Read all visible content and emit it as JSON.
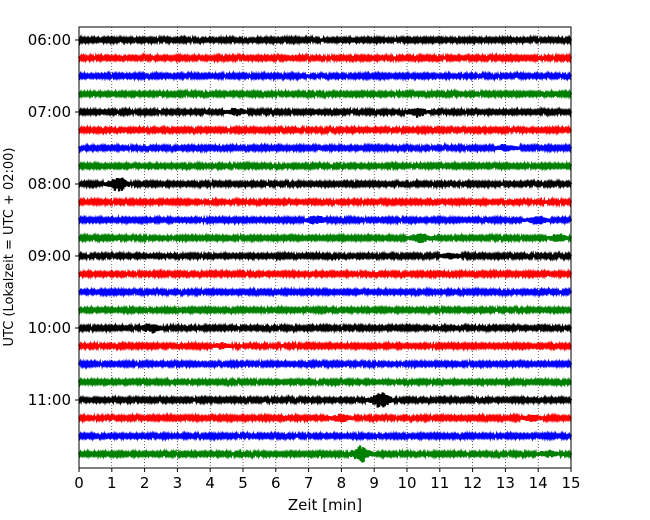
{
  "chart_data": {
    "type": "line",
    "title": "",
    "xlabel": "Zeit  [min]",
    "ylabel": "UTC (Lokalzeit = UTC + 02:00)",
    "xlim": [
      0,
      15
    ],
    "x_ticks": [
      "0",
      "1",
      "2",
      "3",
      "4",
      "5",
      "6",
      "7",
      "8",
      "9",
      "10",
      "11",
      "12",
      "13",
      "14",
      "15"
    ],
    "y_tick_labels": [
      "06:00",
      "07:00",
      "08:00",
      "09:00",
      "10:00",
      "11:00"
    ],
    "grid": "vertical-dotted",
    "trace_colors": [
      "#000000",
      "#ff0000",
      "#0000ff",
      "#008000"
    ],
    "traces": [
      {
        "row": 0,
        "start": "06:00",
        "color": "#000000",
        "events": []
      },
      {
        "row": 1,
        "start": "06:15",
        "color": "#ff0000",
        "events": []
      },
      {
        "row": 2,
        "start": "06:30",
        "color": "#0000ff",
        "events": []
      },
      {
        "row": 3,
        "start": "06:45",
        "color": "#008000",
        "events": []
      },
      {
        "row": 4,
        "start": "07:00",
        "color": "#000000",
        "events": [
          {
            "t": 4.8,
            "amp": 0.35
          },
          {
            "t": 10.3,
            "amp": 0.5
          }
        ]
      },
      {
        "row": 5,
        "start": "07:15",
        "color": "#ff0000",
        "events": []
      },
      {
        "row": 6,
        "start": "07:30",
        "color": "#0000ff",
        "events": [
          {
            "t": 13.0,
            "amp": 0.3
          }
        ]
      },
      {
        "row": 7,
        "start": "07:45",
        "color": "#008000",
        "events": []
      },
      {
        "row": 8,
        "start": "08:00",
        "color": "#000000",
        "events": [
          {
            "t": 1.2,
            "amp": 0.75
          }
        ]
      },
      {
        "row": 9,
        "start": "08:15",
        "color": "#ff0000",
        "events": []
      },
      {
        "row": 10,
        "start": "08:30",
        "color": "#0000ff",
        "events": [
          {
            "t": 7.2,
            "amp": 0.45
          },
          {
            "t": 14.0,
            "amp": 0.4
          }
        ]
      },
      {
        "row": 11,
        "start": "08:45",
        "color": "#008000",
        "events": [
          {
            "t": 10.4,
            "amp": 0.45
          },
          {
            "t": 14.6,
            "amp": 0.35
          }
        ]
      },
      {
        "row": 12,
        "start": "09:00",
        "color": "#000000",
        "events": [
          {
            "t": 11.3,
            "amp": 0.25
          }
        ]
      },
      {
        "row": 13,
        "start": "09:15",
        "color": "#ff0000",
        "events": []
      },
      {
        "row": 14,
        "start": "09:30",
        "color": "#0000ff",
        "events": []
      },
      {
        "row": 15,
        "start": "09:45",
        "color": "#008000",
        "events": []
      },
      {
        "row": 16,
        "start": "10:00",
        "color": "#000000",
        "events": [
          {
            "t": 2.2,
            "amp": 0.45
          }
        ]
      },
      {
        "row": 17,
        "start": "10:15",
        "color": "#ff0000",
        "events": [
          {
            "t": 4.4,
            "amp": 0.25
          }
        ]
      },
      {
        "row": 18,
        "start": "10:30",
        "color": "#0000ff",
        "events": []
      },
      {
        "row": 19,
        "start": "10:45",
        "color": "#008000",
        "events": []
      },
      {
        "row": 20,
        "start": "11:00",
        "color": "#000000",
        "events": [
          {
            "t": 9.2,
            "amp": 0.8
          }
        ]
      },
      {
        "row": 21,
        "start": "11:15",
        "color": "#ff0000",
        "events": [
          {
            "t": 8.0,
            "amp": 0.35
          },
          {
            "t": 13.8,
            "amp": 0.3
          }
        ]
      },
      {
        "row": 22,
        "start": "11:30",
        "color": "#0000ff",
        "events": []
      },
      {
        "row": 23,
        "start": "11:45",
        "color": "#008000",
        "events": [
          {
            "t": 8.6,
            "amp": 0.85
          },
          {
            "t": 14.3,
            "amp": 0.3
          }
        ]
      }
    ]
  }
}
